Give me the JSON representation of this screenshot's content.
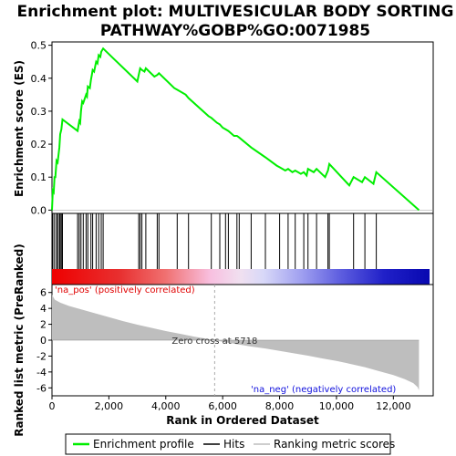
{
  "chart_data": {
    "type": "line",
    "title_lines": [
      "Enrichment plot: MULTIVESICULAR BODY SORTING",
      "PATHWAY%GOBP%GO:0071985"
    ],
    "ylabel_top": "Enrichment score (ES)",
    "ylabel_bottom": "Ranked list metric (PreRanked)",
    "xlabel": "Rank in Ordered Dataset",
    "es_ylim": [
      -0.01,
      0.51
    ],
    "es_yticks": [
      0.0,
      0.1,
      0.2,
      0.3,
      0.4,
      0.5
    ],
    "es_ytick_labels": [
      "0.0",
      "0.1",
      "0.2",
      "0.3",
      "0.4",
      "0.5"
    ],
    "metric_ylim": [
      -7,
      7
    ],
    "metric_yticks": [
      -6,
      -4,
      -2,
      0,
      2,
      4,
      6
    ],
    "metric_ytick_labels": [
      "-6",
      "-4",
      "-2",
      "0",
      "2",
      "4",
      "6"
    ],
    "xlim": [
      0,
      13400
    ],
    "xticks": [
      0,
      2000,
      4000,
      6000,
      8000,
      10000,
      12000
    ],
    "xtick_labels": [
      "0",
      "2,000",
      "4,000",
      "6,000",
      "8,000",
      "10,000",
      "12,000"
    ],
    "dataset_size": 12900,
    "zero_cross": 5718,
    "zero_cross_label": "Zero cross at 5718",
    "pos_label": "'na_pos' (positively correlated)",
    "neg_label": "'na_neg' (negatively correlated)",
    "colors": {
      "es_line": "#00ee00",
      "hits": "#000000",
      "metric_fill": "#bebebe",
      "pos_text": "#e00000",
      "neg_text": "#1010dd",
      "zero_line": "#aaaaaa"
    },
    "metric_profile": [
      [
        0,
        5.7
      ],
      [
        100,
        5.1
      ],
      [
        300,
        4.7
      ],
      [
        600,
        4.3
      ],
      [
        1000,
        3.9
      ],
      [
        1500,
        3.4
      ],
      [
        2000,
        2.9
      ],
      [
        2500,
        2.4
      ],
      [
        3000,
        1.95
      ],
      [
        3500,
        1.55
      ],
      [
        4000,
        1.15
      ],
      [
        4500,
        0.8
      ],
      [
        5000,
        0.45
      ],
      [
        5400,
        0.2
      ],
      [
        5718,
        0.0
      ],
      [
        6000,
        -0.2
      ],
      [
        6500,
        -0.5
      ],
      [
        7000,
        -0.8
      ],
      [
        7500,
        -1.05
      ],
      [
        8000,
        -1.35
      ],
      [
        8500,
        -1.65
      ],
      [
        9000,
        -1.95
      ],
      [
        9500,
        -2.3
      ],
      [
        10000,
        -2.6
      ],
      [
        10500,
        -3.0
      ],
      [
        11000,
        -3.4
      ],
      [
        11500,
        -3.9
      ],
      [
        12000,
        -4.4
      ],
      [
        12400,
        -4.9
      ],
      [
        12700,
        -5.4
      ],
      [
        12850,
        -5.9
      ],
      [
        12900,
        -6.3
      ]
    ],
    "hits": [
      30,
      90,
      160,
      200,
      260,
      290,
      330,
      370,
      900,
      960,
      1020,
      1100,
      1200,
      1260,
      1370,
      1430,
      1550,
      1640,
      1730,
      1800,
      3050,
      3100,
      3160,
      3300,
      3700,
      3760,
      4400,
      4800,
      5600,
      5900,
      6100,
      6200,
      6500,
      6580,
      7000,
      7500,
      8000,
      8300,
      8550,
      8850,
      9000,
      9300,
      9700,
      9750,
      10600,
      11000,
      11400
    ],
    "es_points": [
      [
        0,
        0.0
      ],
      [
        30,
        0.06
      ],
      [
        60,
        0.055
      ],
      [
        90,
        0.1
      ],
      [
        120,
        0.1
      ],
      [
        160,
        0.15
      ],
      [
        200,
        0.145
      ],
      [
        260,
        0.19
      ],
      [
        290,
        0.23
      ],
      [
        330,
        0.245
      ],
      [
        370,
        0.275
      ],
      [
        900,
        0.24
      ],
      [
        960,
        0.27
      ],
      [
        990,
        0.265
      ],
      [
        1020,
        0.3
      ],
      [
        1060,
        0.33
      ],
      [
        1100,
        0.325
      ],
      [
        1200,
        0.35
      ],
      [
        1230,
        0.345
      ],
      [
        1260,
        0.375
      ],
      [
        1330,
        0.37
      ],
      [
        1370,
        0.395
      ],
      [
        1400,
        0.41
      ],
      [
        1430,
        0.425
      ],
      [
        1480,
        0.42
      ],
      [
        1550,
        0.45
      ],
      [
        1600,
        0.445
      ],
      [
        1640,
        0.47
      ],
      [
        1700,
        0.465
      ],
      [
        1730,
        0.48
      ],
      [
        1800,
        0.49
      ],
      [
        3000,
        0.39
      ],
      [
        3050,
        0.41
      ],
      [
        3100,
        0.43
      ],
      [
        3160,
        0.425
      ],
      [
        3250,
        0.42
      ],
      [
        3300,
        0.43
      ],
      [
        3600,
        0.405
      ],
      [
        3700,
        0.41
      ],
      [
        3760,
        0.415
      ],
      [
        4300,
        0.37
      ],
      [
        4400,
        0.365
      ],
      [
        4700,
        0.35
      ],
      [
        4800,
        0.34
      ],
      [
        5500,
        0.285
      ],
      [
        5600,
        0.28
      ],
      [
        5800,
        0.265
      ],
      [
        5900,
        0.26
      ],
      [
        6000,
        0.25
      ],
      [
        6100,
        0.245
      ],
      [
        6200,
        0.24
      ],
      [
        6400,
        0.225
      ],
      [
        6500,
        0.225
      ],
      [
        6580,
        0.22
      ],
      [
        7000,
        0.19
      ],
      [
        7500,
        0.16
      ],
      [
        7900,
        0.135
      ],
      [
        8000,
        0.13
      ],
      [
        8200,
        0.12
      ],
      [
        8300,
        0.125
      ],
      [
        8450,
        0.115
      ],
      [
        8550,
        0.12
      ],
      [
        8750,
        0.11
      ],
      [
        8850,
        0.115
      ],
      [
        8950,
        0.105
      ],
      [
        9000,
        0.125
      ],
      [
        9200,
        0.115
      ],
      [
        9300,
        0.125
      ],
      [
        9600,
        0.1
      ],
      [
        9700,
        0.12
      ],
      [
        9750,
        0.14
      ],
      [
        10450,
        0.075
      ],
      [
        10600,
        0.1
      ],
      [
        10900,
        0.085
      ],
      [
        11000,
        0.1
      ],
      [
        11300,
        0.08
      ],
      [
        11400,
        0.115
      ],
      [
        12900,
        0.0
      ]
    ],
    "legend": [
      {
        "label": "Enrichment profile",
        "style": "green-line"
      },
      {
        "label": "Hits",
        "style": "black-line"
      },
      {
        "label": "Ranking metric scores",
        "style": "gray-line"
      }
    ]
  }
}
